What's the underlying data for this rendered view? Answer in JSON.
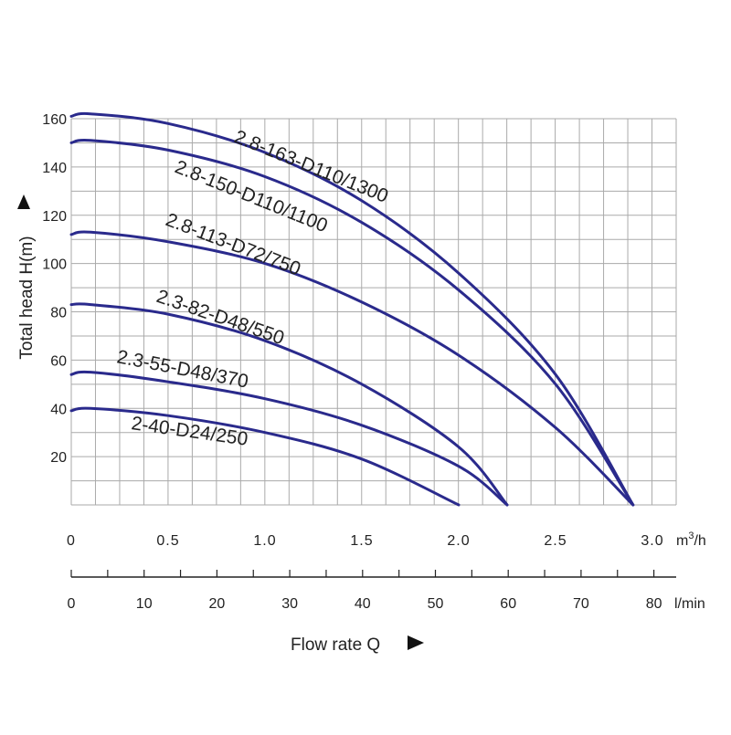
{
  "chart_data": {
    "type": "line",
    "title": "",
    "xlabel": "Flow rate Q",
    "ylabel": "Total head H(m)",
    "xlim": [
      0,
      3.1
    ],
    "ylim": [
      0,
      160
    ],
    "x_ticks": [
      "0",
      "0.5",
      "1.0",
      "1.5",
      "2.0",
      "2.5",
      "3.0"
    ],
    "x_unit_prefix": "m",
    "x_unit_exp": "3",
    "x_unit_suffix": "/h",
    "y_ticks": [
      "20",
      "40",
      "60",
      "80",
      "100",
      "120",
      "140",
      "160"
    ],
    "secondary_axis": {
      "unit": "l/min",
      "ticks": [
        "0",
        "10",
        "20",
        "30",
        "40",
        "50",
        "60",
        "70",
        "80"
      ]
    },
    "line_color": "#2a2a8c",
    "grid": true,
    "series": [
      {
        "name": "2.8-163-D110/1300",
        "x": [
          0,
          0.1,
          0.5,
          1.0,
          1.5,
          2.0,
          2.5,
          2.9
        ],
        "y": [
          161,
          162,
          158,
          146,
          126,
          96,
          54,
          0
        ]
      },
      {
        "name": "2.8-150-D110/1100",
        "x": [
          0,
          0.1,
          0.5,
          1.0,
          1.5,
          2.0,
          2.5,
          2.9
        ],
        "y": [
          150,
          151,
          147,
          136,
          117,
          89,
          50,
          0
        ]
      },
      {
        "name": "2.8-113-D72/750",
        "x": [
          0,
          0.1,
          0.5,
          1.0,
          1.5,
          2.0,
          2.5,
          2.9
        ],
        "y": [
          112,
          113,
          109,
          100,
          84,
          62,
          32,
          0
        ]
      },
      {
        "name": "2.3-82-D48/550",
        "x": [
          0,
          0.1,
          0.5,
          1.0,
          1.5,
          2.0,
          2.25
        ],
        "y": [
          83,
          83,
          79,
          68,
          50,
          24,
          0
        ]
      },
      {
        "name": "2.3-55-D48/370",
        "x": [
          0,
          0.1,
          0.5,
          1.0,
          1.5,
          2.0,
          2.25
        ],
        "y": [
          54,
          55,
          51,
          44,
          33,
          16,
          0
        ]
      },
      {
        "name": "2-40-D24/250",
        "x": [
          0,
          0.1,
          0.5,
          1.0,
          1.5,
          2.0
        ],
        "y": [
          39,
          40,
          37,
          30,
          19,
          0
        ]
      }
    ]
  }
}
